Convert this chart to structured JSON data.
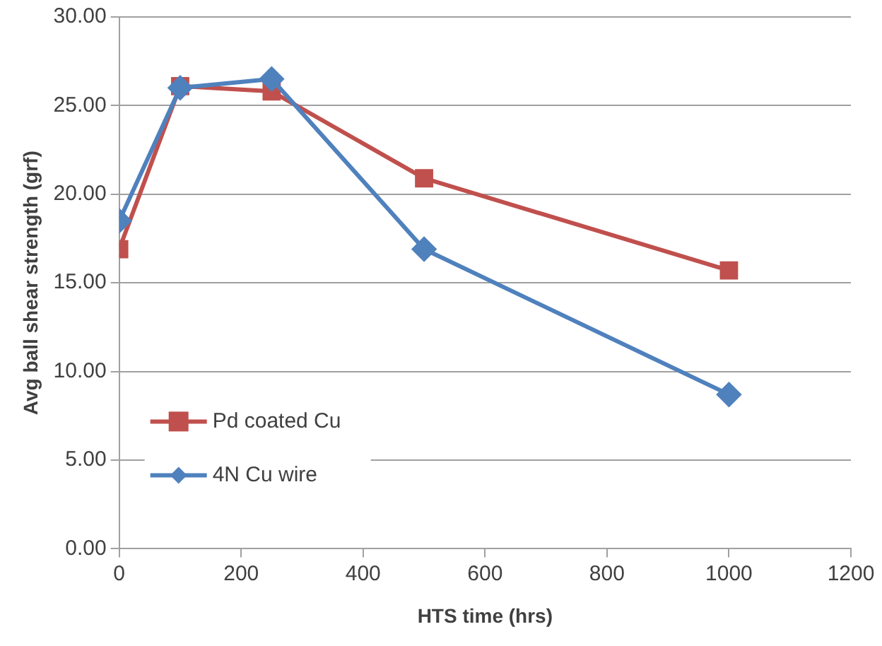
{
  "chart_data": {
    "type": "line",
    "xlabel": "HTS time (hrs)",
    "ylabel": "Avg ball shear strength (grf)",
    "xlim": [
      0,
      1200
    ],
    "xticks": [
      0,
      200,
      400,
      600,
      800,
      1000,
      1200
    ],
    "ylim": [
      0,
      30
    ],
    "yticks": [
      {
        "value": 0,
        "label": "0.00"
      },
      {
        "value": 5,
        "label": "5.00"
      },
      {
        "value": 10,
        "label": "10.00"
      },
      {
        "value": 15,
        "label": "15.00"
      },
      {
        "value": 20,
        "label": "20.00"
      },
      {
        "value": 25,
        "label": "25.00"
      },
      {
        "value": 30,
        "label": "30.00"
      }
    ],
    "grid": "y",
    "legend": "bottom left",
    "series": [
      {
        "name": "Pd coated Cu",
        "color": "#c0504d",
        "marker": "square",
        "x": [
          0,
          100,
          250,
          500,
          1000
        ],
        "values": [
          16.9,
          26.1,
          25.8,
          20.9,
          15.7
        ]
      },
      {
        "name": "4N Cu wire",
        "color": "#4f81bd",
        "marker": "diamond",
        "x": [
          0,
          100,
          250,
          500,
          1000
        ],
        "values": [
          18.5,
          26.0,
          26.5,
          16.9,
          8.7
        ]
      }
    ]
  }
}
